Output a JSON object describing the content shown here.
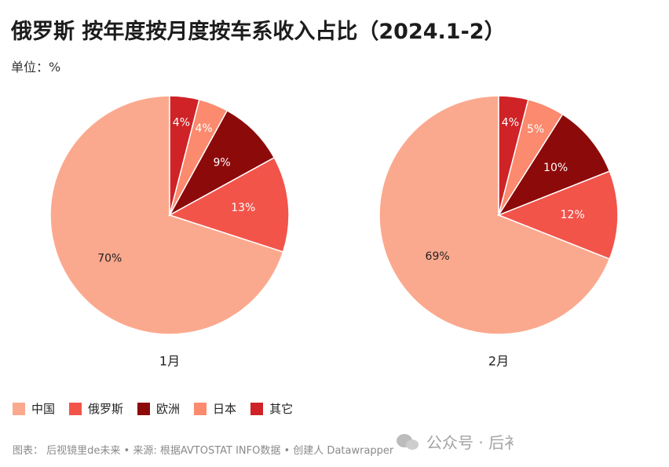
{
  "header": {
    "title": "俄罗斯 按年度按月度按车系收入占比（2024.1-2）",
    "unit": "单位：%"
  },
  "chart_data": [
    {
      "type": "pie",
      "label": "1月",
      "categories": [
        "中国",
        "俄罗斯",
        "欧洲",
        "日本",
        "其它"
      ],
      "values": [
        70,
        13,
        9,
        4,
        4
      ],
      "value_labels": [
        "70%",
        "13%",
        "9%",
        "4%",
        "4%"
      ]
    },
    {
      "type": "pie",
      "label": "2月",
      "categories": [
        "中国",
        "俄罗斯",
        "欧洲",
        "日本",
        "其它"
      ],
      "values": [
        69,
        12,
        10,
        5,
        4
      ],
      "value_labels": [
        "69%",
        "12%",
        "10%",
        "5%",
        "4%"
      ]
    }
  ],
  "legend": {
    "items": [
      {
        "label": "中国",
        "color": "#fba98e"
      },
      {
        "label": "俄罗斯",
        "color": "#f2544a"
      },
      {
        "label": "欧洲",
        "color": "#8d0a0a"
      },
      {
        "label": "日本",
        "color": "#fb8a6e"
      },
      {
        "label": "其它",
        "color": "#cf2327"
      }
    ],
    "placement": "bottom-left"
  },
  "footer": {
    "source": "图表： 后视镜里de未来 • 来源: 根据AVTOSTAT INFO数据 • 创建人 Datawrapper"
  },
  "watermark": {
    "text": "公众号 · 后衤"
  }
}
